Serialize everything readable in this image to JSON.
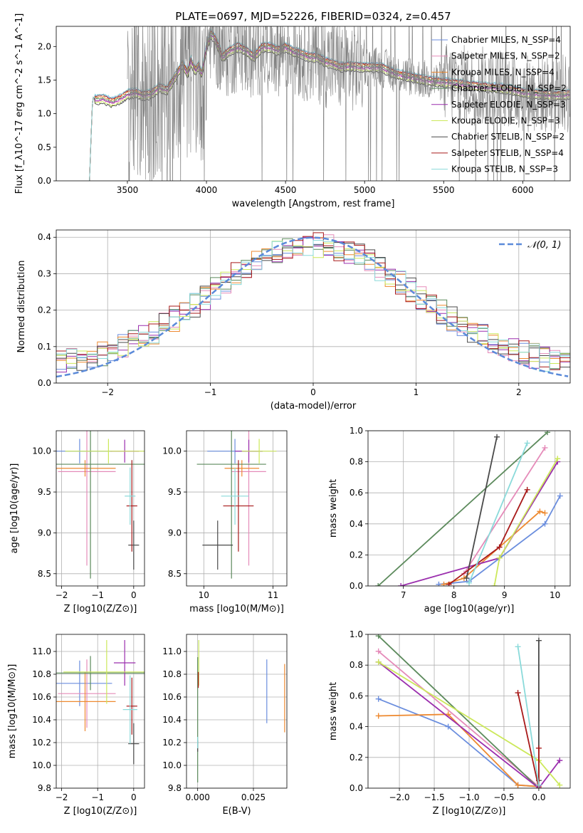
{
  "figure": {
    "title": "PLATE=0697, MJD=52226, FIBERID=0324, z=0.457"
  },
  "colors": {
    "Chabrier MILES": "#6b8ede",
    "Salpeter MILES": "#e58bb9",
    "Kroupa MILES": "#ee8a31",
    "Chabrier ELODIE": "#5c8a5c",
    "Salpeter ELODIE": "#9b2fae",
    "Kroupa ELODIE": "#cce85a",
    "Chabrier STELIB": "#4a4a4a",
    "Salpeter STELIB": "#a81a1a",
    "Kroupa STELIB": "#8adada",
    "data": "#808080",
    "gaussian": "#5b8ad9",
    "grid": "#b0b0b0"
  },
  "chart_data": [
    {
      "id": "spectrum",
      "type": "line",
      "xlabel": "wavelength [Angstrom, rest frame]",
      "ylabel": "Flux [f_λ10^-17 erg cm^-2 s^-1 A^-1]",
      "xlim": [
        3050,
        6300
      ],
      "ylim": [
        0,
        2.3
      ],
      "xticks": [
        "3500",
        "4000",
        "4500",
        "5000",
        "5500",
        "6000"
      ],
      "yticks": [
        "0.0",
        "0.5",
        "1.0",
        "1.5",
        "2.0"
      ],
      "grid": false,
      "legend_position": "top-right",
      "legend": [
        {
          "name": "Chabrier MILES",
          "nssp": "4"
        },
        {
          "name": "Salpeter MILES",
          "nssp": "2"
        },
        {
          "name": "Kroupa MILES",
          "nssp": "4"
        },
        {
          "name": "Chabrier ELODIE",
          "nssp": "2"
        },
        {
          "name": "Salpeter ELODIE",
          "nssp": "3"
        },
        {
          "name": "Kroupa ELODIE",
          "nssp": "3"
        },
        {
          "name": "Chabrier STELIB",
          "nssp": "2"
        },
        {
          "name": "Salpeter STELIB",
          "nssp": "4"
        },
        {
          "name": "Kroupa STELIB",
          "nssp": "3"
        }
      ],
      "model_continuum": [
        [
          3260,
          0
        ],
        [
          3280,
          1.25
        ],
        [
          3300,
          1.22
        ],
        [
          3350,
          1.23
        ],
        [
          3400,
          1.18
        ],
        [
          3450,
          1.22
        ],
        [
          3500,
          1.3
        ],
        [
          3550,
          1.32
        ],
        [
          3600,
          1.28
        ],
        [
          3650,
          1.3
        ],
        [
          3700,
          1.4
        ],
        [
          3750,
          1.36
        ],
        [
          3800,
          1.55
        ],
        [
          3850,
          1.75
        ],
        [
          3880,
          1.6
        ],
        [
          3900,
          1.8
        ],
        [
          3930,
          1.65
        ],
        [
          3950,
          1.72
        ],
        [
          3970,
          1.6
        ],
        [
          4000,
          2.0
        ],
        [
          4030,
          2.2
        ],
        [
          4060,
          2.1
        ],
        [
          4100,
          1.85
        ],
        [
          4150,
          1.95
        ],
        [
          4200,
          2.0
        ],
        [
          4250,
          1.95
        ],
        [
          4300,
          1.85
        ],
        [
          4350,
          2.0
        ],
        [
          4400,
          2.0
        ],
        [
          4450,
          1.95
        ],
        [
          4500,
          2.0
        ],
        [
          4550,
          1.93
        ],
        [
          4600,
          1.9
        ],
        [
          4650,
          1.85
        ],
        [
          4700,
          1.85
        ],
        [
          4750,
          1.78
        ],
        [
          4800,
          1.75
        ],
        [
          4850,
          1.7
        ],
        [
          4900,
          1.72
        ],
        [
          5000,
          1.7
        ],
        [
          5100,
          1.7
        ],
        [
          5200,
          1.6
        ],
        [
          5300,
          1.55
        ],
        [
          5400,
          1.5
        ],
        [
          5500,
          1.48
        ],
        [
          5600,
          1.45
        ],
        [
          5700,
          1.42
        ],
        [
          5800,
          1.4
        ],
        [
          5900,
          1.38
        ],
        [
          6000,
          1.32
        ],
        [
          6100,
          1.3
        ],
        [
          6200,
          1.28
        ],
        [
          6300,
          1.3
        ]
      ],
      "data_coverage": [
        3500,
        6300
      ]
    },
    {
      "id": "residuals",
      "type": "area",
      "xlabel": "(data-model)/error",
      "ylabel": "Normed distribution",
      "xlim": [
        -2.5,
        2.5
      ],
      "ylim": [
        0,
        0.42
      ],
      "xticks": [
        "−2",
        "−1",
        "0",
        "1",
        "2"
      ],
      "yticks": [
        "0.0",
        "0.1",
        "0.2",
        "0.3",
        "0.4"
      ],
      "grid": true,
      "legend_position": "top-right",
      "legend": [
        "𝒩(0, 1)"
      ],
      "gaussian": {
        "mean": 0,
        "sigma": 1,
        "style": "dashed"
      },
      "bin_width": 0.1
    },
    {
      "id": "age_vs_Z",
      "type": "scatter",
      "xlabel": "Z [log10(Z/Z⊙)]",
      "ylabel": "age [log10(age/yr)]",
      "xlim": [
        -2.15,
        0.3
      ],
      "ylim": [
        8.35,
        10.25
      ],
      "xticks": [
        "−2",
        "−1",
        "0"
      ],
      "yticks": [
        "8.5",
        "9.0",
        "9.5",
        "10.0"
      ],
      "grid": true,
      "points": [
        {
          "model": "Chabrier MILES",
          "x": -1.5,
          "xerr": 0.9,
          "y": 10.0,
          "yerr": 0.15
        },
        {
          "model": "Salpeter MILES",
          "x": -1.3,
          "xerr": 0.8,
          "y": 9.75,
          "yerr": 1.15
        },
        {
          "model": "Kroupa MILES",
          "x": -1.35,
          "xerr": 0.85,
          "y": 9.79,
          "yerr": 0.1
        },
        {
          "model": "Chabrier ELODIE",
          "x": -1.2,
          "xerr": 1.55,
          "y": 9.84,
          "yerr": 1.4
        },
        {
          "model": "Salpeter ELODIE",
          "x": -0.25,
          "xerr": 0.4,
          "y": 10.0,
          "yerr": 0.14
        },
        {
          "model": "Kroupa ELODIE",
          "x": -0.7,
          "xerr": 1.2,
          "y": 10.0,
          "yerr": 0.15
        },
        {
          "model": "Chabrier STELIB",
          "x": 0.0,
          "xerr": 0.15,
          "y": 8.85,
          "yerr": 0.3
        },
        {
          "model": "Salpeter STELIB",
          "x": -0.05,
          "xerr": 0.15,
          "y": 9.33,
          "yerr": 0.56
        },
        {
          "model": "Kroupa STELIB",
          "x": -0.1,
          "xerr": 0.15,
          "y": 9.45,
          "yerr": 0.35
        }
      ]
    },
    {
      "id": "age_vs_mass",
      "type": "scatter",
      "xlabel": "mass [log10(M/M⊙)]",
      "ylabel": "",
      "xlim": [
        9.75,
        11.2
      ],
      "ylim": [
        8.35,
        10.25
      ],
      "xticks": [
        "10",
        "11"
      ],
      "yticks": [
        "8.5",
        "9.0",
        "9.5",
        "10.0"
      ],
      "grid": true,
      "points": [
        {
          "model": "Chabrier MILES",
          "x": 10.45,
          "xerr": 0.4,
          "y": 10.0,
          "yerr": 0.15
        },
        {
          "model": "Salpeter MILES",
          "x": 10.65,
          "xerr": 0.25,
          "y": 9.75,
          "yerr": 1.15
        },
        {
          "model": "Kroupa MILES",
          "x": 10.55,
          "xerr": 0.25,
          "y": 9.79,
          "yerr": 0.1
        },
        {
          "model": "Chabrier ELODIE",
          "x": 10.4,
          "xerr": 0.5,
          "y": 9.84,
          "yerr": 1.4
        },
        {
          "model": "Salpeter ELODIE",
          "x": 10.65,
          "xerr": 0.2,
          "y": 10.0,
          "yerr": 0.14
        },
        {
          "model": "Kroupa ELODIE",
          "x": 10.8,
          "xerr": 0.25,
          "y": 10.0,
          "yerr": 0.15
        },
        {
          "model": "Chabrier STELIB",
          "x": 10.2,
          "xerr": 0.22,
          "y": 8.85,
          "yerr": 0.3
        },
        {
          "model": "Salpeter STELIB",
          "x": 10.5,
          "xerr": 0.22,
          "y": 9.33,
          "yerr": 0.56
        },
        {
          "model": "Kroupa STELIB",
          "x": 10.45,
          "xerr": 0.2,
          "y": 9.45,
          "yerr": 0.35
        }
      ]
    },
    {
      "id": "weight_vs_age",
      "type": "line",
      "xlabel": "age [log10(age/yr)]",
      "ylabel": "mass weight",
      "xlim": [
        6.3,
        10.3
      ],
      "ylim": [
        0,
        1.0
      ],
      "xticks": [
        "7",
        "8",
        "9",
        "10"
      ],
      "yticks": [
        "0.0",
        "0.2",
        "0.4",
        "0.6",
        "0.8",
        "1.0"
      ],
      "grid": true,
      "series": [
        {
          "model": "Chabrier MILES",
          "x": [
            7.7,
            8.3,
            9.8,
            10.1
          ],
          "y": [
            0.01,
            0.03,
            0.4,
            0.58
          ]
        },
        {
          "model": "Salpeter MILES",
          "x": [
            8.2,
            9.8
          ],
          "y": [
            0.08,
            0.89
          ]
        },
        {
          "model": "Kroupa MILES",
          "x": [
            7.8,
            8.2,
            9.7,
            9.8
          ],
          "y": [
            0.01,
            0.05,
            0.48,
            0.47
          ]
        },
        {
          "model": "Chabrier ELODIE",
          "x": [
            6.5,
            9.85
          ],
          "y": [
            0.0,
            0.99
          ]
        },
        {
          "model": "Salpeter ELODIE",
          "x": [
            6.95,
            8.9,
            10.05
          ],
          "y": [
            0.0,
            0.18,
            0.8
          ]
        },
        {
          "model": "Kroupa ELODIE",
          "x": [
            8.8,
            8.9,
            10.05
          ],
          "y": [
            0.0,
            0.18,
            0.82
          ]
        },
        {
          "model": "Chabrier STELIB",
          "x": [
            8.25,
            8.85
          ],
          "y": [
            0.05,
            0.96
          ]
        },
        {
          "model": "Salpeter STELIB",
          "x": [
            7.9,
            8.9,
            9.45
          ],
          "y": [
            0.01,
            0.25,
            0.62
          ]
        },
        {
          "model": "Kroupa STELIB",
          "x": [
            8.3,
            9.45
          ],
          "y": [
            0.02,
            0.92
          ]
        }
      ]
    },
    {
      "id": "mass_vs_Z",
      "type": "scatter",
      "xlabel": "Z [log10(Z/Z⊙)]",
      "ylabel": "mass [log10(M/M⊙)]",
      "xlim": [
        -2.15,
        0.3
      ],
      "ylim": [
        9.8,
        11.15
      ],
      "xticks": [
        "−2",
        "−1",
        "0"
      ],
      "yticks": [
        "9.8",
        "10.0",
        "10.2",
        "10.4",
        "10.6",
        "10.8",
        "11.0"
      ],
      "grid": true,
      "points": [
        {
          "model": "Chabrier MILES",
          "x": -1.5,
          "xerr": 0.9,
          "y": 10.72,
          "yerr": 0.2
        },
        {
          "model": "Salpeter MILES",
          "x": -1.3,
          "xerr": 0.8,
          "y": 10.63,
          "yerr": 0.3
        },
        {
          "model": "Kroupa MILES",
          "x": -1.35,
          "xerr": 0.85,
          "y": 10.56,
          "yerr": 0.26
        },
        {
          "model": "Chabrier ELODIE",
          "x": -1.2,
          "xerr": 1.55,
          "y": 10.81,
          "yerr": 0.15
        },
        {
          "model": "Salpeter ELODIE",
          "x": -0.25,
          "xerr": 0.3,
          "y": 10.9,
          "yerr": 0.2
        },
        {
          "model": "Kroupa ELODIE",
          "x": -0.75,
          "xerr": 1.2,
          "y": 10.82,
          "yerr": 0.28
        },
        {
          "model": "Chabrier STELIB",
          "x": 0.0,
          "xerr": 0.15,
          "y": 10.19,
          "yerr": 0.18
        },
        {
          "model": "Salpeter STELIB",
          "x": -0.05,
          "xerr": 0.15,
          "y": 10.52,
          "yerr": 0.25
        },
        {
          "model": "Kroupa STELIB",
          "x": -0.1,
          "xerr": 0.2,
          "y": 10.49,
          "yerr": 0.3
        }
      ]
    },
    {
      "id": "mass_vs_ebv",
      "type": "scatter",
      "xlabel": "E(B-V)",
      "ylabel": "",
      "xlim": [
        -0.005,
        0.04
      ],
      "ylim": [
        9.8,
        11.15
      ],
      "xticks": [
        "0.000",
        "0.025"
      ],
      "yticks": [
        "9.8",
        "10.0",
        "10.2",
        "10.4",
        "10.6",
        "10.8",
        "11.0"
      ],
      "grid": true,
      "points": [
        {
          "model": "Chabrier MILES",
          "x": 0.031,
          "y": 10.65,
          "yerr": 0.28
        },
        {
          "model": "Kroupa MILES",
          "x": 0.039,
          "y": 10.59,
          "yerr": 0.3
        },
        {
          "model": "Chabrier ELODIE",
          "x": 0.0,
          "y": 10.4,
          "yerr": 0.55
        },
        {
          "model": "Kroupa ELODIE",
          "x": 0.0005,
          "y": 10.9,
          "yerr": 0.2
        },
        {
          "model": "Salpeter STELIB",
          "x": 0.0003,
          "y": 10.75,
          "yerr": 0.07
        },
        {
          "model": "Chabrier STELIB",
          "x": 0.0,
          "y": 10.17,
          "yerr": 0.05
        },
        {
          "model": "Kroupa STELIB",
          "x": 0.0,
          "y": 10.2,
          "yerr": 0.05
        }
      ]
    },
    {
      "id": "weight_vs_Z",
      "type": "line",
      "xlabel": "Z [log10(Z/Z⊙)]",
      "ylabel": "mass weight",
      "xlim": [
        -2.45,
        0.45
      ],
      "ylim": [
        0,
        1.0
      ],
      "xticks": [
        "−2.0",
        "−1.5",
        "−1.0",
        "−0.5",
        "0.0"
      ],
      "yticks": [
        "0.0",
        "0.2",
        "0.4",
        "0.6",
        "0.8",
        "1.0"
      ],
      "grid": true,
      "series": [
        {
          "model": "Chabrier MILES",
          "x": [
            -2.3,
            -1.3,
            -0.3,
            0.0
          ],
          "y": [
            0.58,
            0.4,
            0.02,
            0.01
          ]
        },
        {
          "model": "Salpeter MILES",
          "x": [
            -2.3,
            0.0
          ],
          "y": [
            0.89,
            0.01
          ]
        },
        {
          "model": "Kroupa MILES",
          "x": [
            -2.3,
            -1.3,
            -0.3,
            0.0
          ],
          "y": [
            0.47,
            0.48,
            0.02,
            0.01
          ]
        },
        {
          "model": "Chabrier ELODIE",
          "x": [
            -2.3,
            0.0
          ],
          "y": [
            0.99,
            0.0
          ]
        },
        {
          "model": "Salpeter ELODIE",
          "x": [
            -2.3,
            0.0,
            0.3
          ],
          "y": [
            0.82,
            0.0,
            0.18
          ]
        },
        {
          "model": "Kroupa ELODIE",
          "x": [
            -2.3,
            0.0,
            0.3
          ],
          "y": [
            0.82,
            0.18,
            0.02
          ]
        },
        {
          "model": "Chabrier STELIB",
          "x": [
            0.0,
            0.0
          ],
          "y": [
            0.05,
            0.96
          ]
        },
        {
          "model": "Salpeter STELIB",
          "x": [
            -0.3,
            0.0,
            0.0
          ],
          "y": [
            0.62,
            0.0,
            0.26
          ]
        },
        {
          "model": "Kroupa STELIB",
          "x": [
            -0.3,
            0.0
          ],
          "y": [
            0.92,
            0.02
          ]
        }
      ]
    }
  ]
}
